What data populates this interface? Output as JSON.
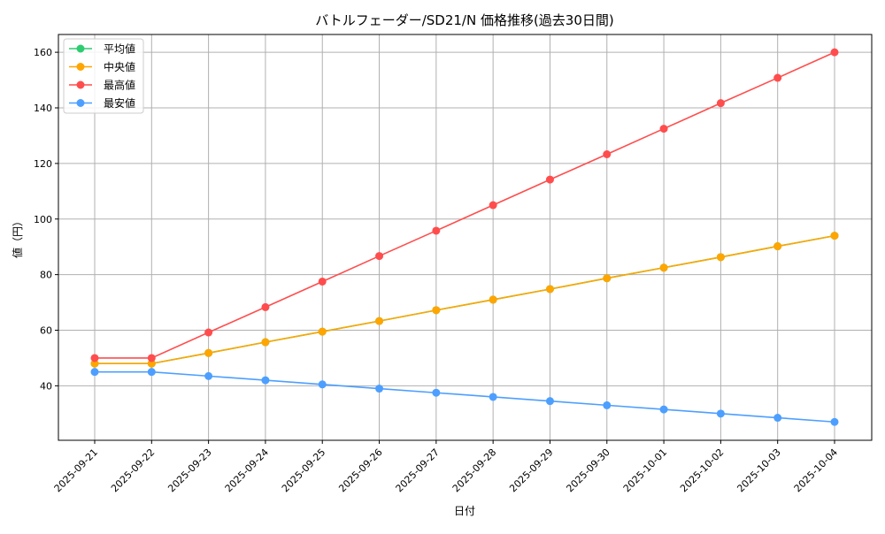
{
  "chart_data": {
    "type": "line",
    "title": "バトルフェーダー/SD21/N 価格推移(過去30日間)",
    "xlabel": "日付",
    "ylabel": "値（円）",
    "x": [
      "2025-09-21",
      "2025-09-22",
      "2025-09-23",
      "2025-09-24",
      "2025-09-25",
      "2025-09-26",
      "2025-09-27",
      "2025-09-28",
      "2025-09-29",
      "2025-09-30",
      "2025-10-01",
      "2025-10-02",
      "2025-10-03",
      "2025-10-04"
    ],
    "ylim": [
      20.4,
      166.4
    ],
    "yticks": [
      40,
      60,
      80,
      100,
      120,
      140,
      160
    ],
    "grid": true,
    "legend_position": "top-left",
    "series": [
      {
        "name": "平均値",
        "color": "#2ecc71",
        "values": [
          48,
          48,
          51.8,
          55.7,
          59.5,
          63.3,
          67.2,
          71,
          74.8,
          78.7,
          82.5,
          86.3,
          90.2,
          94
        ]
      },
      {
        "name": "中央値",
        "color": "#ffa500",
        "values": [
          48,
          48,
          51.8,
          55.7,
          59.5,
          63.3,
          67.2,
          71,
          74.8,
          78.7,
          82.5,
          86.3,
          90.2,
          94
        ]
      },
      {
        "name": "最高値",
        "color": "#ff4d4d",
        "values": [
          50,
          50,
          59.2,
          68.3,
          77.5,
          86.7,
          95.8,
          105,
          114.2,
          123.3,
          132.5,
          141.7,
          150.8,
          160
        ]
      },
      {
        "name": "最安値",
        "color": "#4d9fff",
        "values": [
          45,
          45,
          43.5,
          42,
          40.5,
          39,
          37.5,
          36,
          34.5,
          33,
          31.5,
          30,
          28.5,
          27
        ]
      }
    ]
  }
}
